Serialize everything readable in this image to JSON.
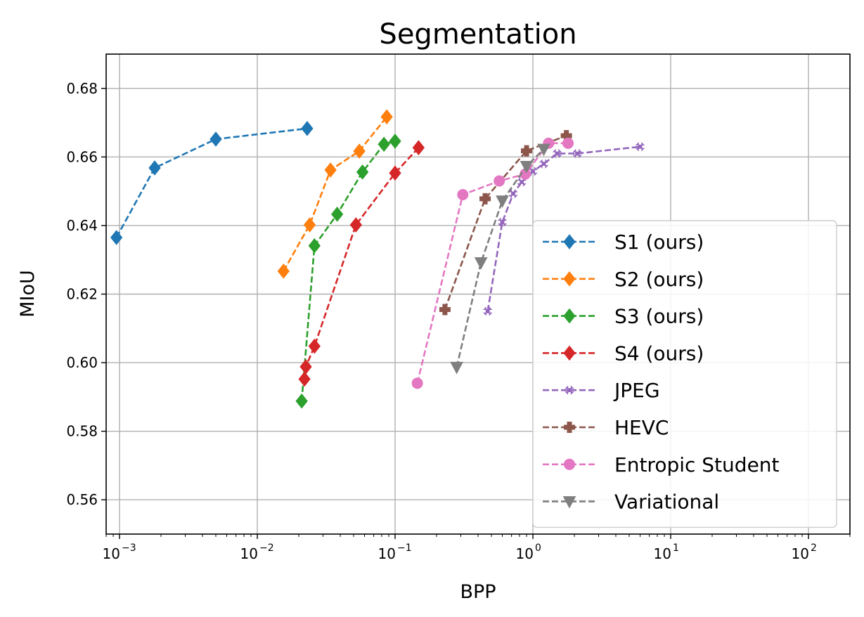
{
  "chart_data": {
    "type": "line",
    "title": "Segmentation",
    "xlabel": "BPP",
    "ylabel": "MIoU",
    "xscale": "log",
    "xlim": [
      0.0008,
      200
    ],
    "ylim": [
      0.55,
      0.69
    ],
    "grid": true,
    "legend_position": "lower-right",
    "x_ticks": [
      {
        "value": 0.001,
        "base": "10",
        "exp": "−3"
      },
      {
        "value": 0.01,
        "base": "10",
        "exp": "−2"
      },
      {
        "value": 0.1,
        "base": "10",
        "exp": "−1"
      },
      {
        "value": 1,
        "base": "10",
        "exp": "0"
      },
      {
        "value": 10,
        "base": "10",
        "exp": "1"
      },
      {
        "value": 100,
        "base": "10",
        "exp": "2"
      }
    ],
    "y_ticks": [
      {
        "value": 0.56,
        "label": "0.56"
      },
      {
        "value": 0.58,
        "label": "0.58"
      },
      {
        "value": 0.6,
        "label": "0.60"
      },
      {
        "value": 0.62,
        "label": "0.62"
      },
      {
        "value": 0.64,
        "label": "0.64"
      },
      {
        "value": 0.66,
        "label": "0.66"
      },
      {
        "value": 0.68,
        "label": "0.68"
      }
    ],
    "series": [
      {
        "name": "S1 (ours)",
        "color": "#1f77b4",
        "marker": "diamond",
        "x": [
          0.00095,
          0.0018,
          0.005,
          0.023
        ],
        "y": [
          0.6365,
          0.6568,
          0.6652,
          0.6683
        ]
      },
      {
        "name": "S2 (ours)",
        "color": "#ff7f0e",
        "marker": "diamond",
        "x": [
          0.0155,
          0.024,
          0.034,
          0.055,
          0.087
        ],
        "y": [
          0.6267,
          0.6402,
          0.6562,
          0.6617,
          0.6717
        ]
      },
      {
        "name": "S3 (ours)",
        "color": "#2ca02c",
        "marker": "diamond",
        "x": [
          0.021,
          0.026,
          0.038,
          0.058,
          0.083,
          0.1
        ],
        "y": [
          0.5888,
          0.6341,
          0.6433,
          0.6556,
          0.6637,
          0.6646
        ]
      },
      {
        "name": "S4 (ours)",
        "color": "#d62728",
        "marker": "diamond",
        "x": [
          0.022,
          0.0225,
          0.026,
          0.052,
          0.1,
          0.148
        ],
        "y": [
          0.5952,
          0.5988,
          0.6048,
          0.6402,
          0.6553,
          0.6627
        ]
      },
      {
        "name": "JPEG",
        "color": "#9467bd",
        "marker": "x-filled",
        "x": [
          0.47,
          0.6,
          0.72,
          0.83,
          1.0,
          1.2,
          1.5,
          2.1,
          6.0
        ],
        "y": [
          0.615,
          0.641,
          0.6493,
          0.6527,
          0.6558,
          0.658,
          0.661,
          0.661,
          0.663
        ]
      },
      {
        "name": "HEVC",
        "color": "#8c564b",
        "marker": "plus-filled",
        "x": [
          0.23,
          0.45,
          0.9,
          1.75
        ],
        "y": [
          0.6155,
          0.6478,
          0.6618,
          0.6662
        ]
      },
      {
        "name": "Entropic Student",
        "color": "#e377c2",
        "marker": "circle",
        "x": [
          0.145,
          0.31,
          0.57,
          0.88,
          1.3,
          1.8
        ],
        "y": [
          0.594,
          0.649,
          0.653,
          0.655,
          0.664,
          0.664
        ]
      },
      {
        "name": "Variational",
        "color": "#7f7f7f",
        "marker": "triangle-down",
        "x": [
          0.28,
          0.42,
          0.6,
          0.9,
          1.2
        ],
        "y": [
          0.5987,
          0.6292,
          0.6472,
          0.6573,
          0.6623
        ]
      }
    ]
  }
}
